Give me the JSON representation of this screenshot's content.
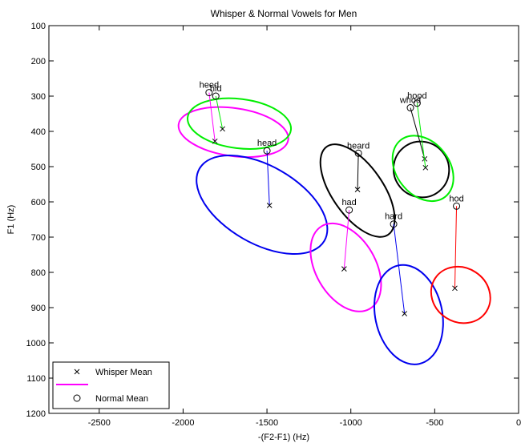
{
  "chart_data": {
    "type": "scatter",
    "title": "Whisper & Normal Vowels for Men",
    "xlabel": "-(F2-F1) (Hz)",
    "ylabel": "F1 (Hz)",
    "xlim": [
      -2800,
      0
    ],
    "ylim": [
      100,
      1200
    ],
    "y_inverted": true,
    "x_ticks": [
      -2500,
      -2000,
      -1500,
      -1000,
      -500,
      0
    ],
    "y_ticks": [
      100,
      200,
      300,
      400,
      500,
      600,
      700,
      800,
      900,
      1000,
      1100,
      1200
    ],
    "grid": false,
    "legend": {
      "placement": "bottom-left",
      "entries": [
        {
          "marker": "x",
          "label": "Whisper Mean"
        },
        {
          "marker": "line",
          "color": "#ff00ff",
          "label": ""
        },
        {
          "marker": "o",
          "label": "Normal Mean"
        }
      ]
    },
    "vowels": [
      {
        "label": "heed",
        "color": "#ff00ff",
        "normal": [
          -1845,
          290
        ],
        "whisper": [
          -1810,
          428
        ],
        "ellipse": {
          "cx": -1700,
          "cy": 402,
          "rx": 330,
          "ry": 68,
          "angle": 8
        }
      },
      {
        "label": "hid",
        "color": "#00ee00",
        "normal": [
          -1805,
          300
        ],
        "whisper": [
          -1765,
          393
        ],
        "ellipse": {
          "cx": -1665,
          "cy": 378,
          "rx": 310,
          "ry": 70,
          "angle": 7
        }
      },
      {
        "label": "head",
        "color": "#0000ee",
        "normal": [
          -1500,
          455
        ],
        "whisper": [
          -1485,
          610
        ],
        "ellipse": {
          "cx": -1530,
          "cy": 608,
          "rx": 430,
          "ry": 110,
          "angle": 30
        }
      },
      {
        "label": "had",
        "color": "#ff00ff",
        "normal": [
          -1010,
          623
        ],
        "whisper": [
          -1040,
          790
        ],
        "ellipse": {
          "cx": -1030,
          "cy": 786,
          "rx": 285,
          "ry": 85,
          "angle": 60
        }
      },
      {
        "label": "heard",
        "color": "#000000",
        "normal": [
          -955,
          462
        ],
        "whisper": [
          -960,
          565
        ],
        "ellipse": {
          "cx": -960,
          "cy": 568,
          "rx": 320,
          "ry": 72,
          "angle": 55
        }
      },
      {
        "label": "hard",
        "color": "#0000ee",
        "normal": [
          -745,
          663
        ],
        "whisper": [
          -680,
          917
        ],
        "ellipse": {
          "cx": -655,
          "cy": 920,
          "rx": 300,
          "ry": 95,
          "angle": 78
        }
      },
      {
        "label": "whod",
        "color": "#000000",
        "normal": [
          -645,
          333
        ],
        "whisper": [
          -560,
          478
        ],
        "ellipse": {
          "cx": -580,
          "cy": 508,
          "rx": 168,
          "ry": 78,
          "angle": 50
        }
      },
      {
        "label": "hood",
        "color": "#00ee00",
        "normal": [
          -605,
          320
        ],
        "whisper": [
          -555,
          503
        ],
        "ellipse": {
          "cx": -570,
          "cy": 505,
          "rx": 215,
          "ry": 75,
          "angle": 52
        }
      },
      {
        "label": "hod",
        "color": "#ff0000",
        "normal": [
          -370,
          612
        ],
        "whisper": [
          -380,
          845
        ],
        "ellipse": {
          "cx": -345,
          "cy": 864,
          "rx": 182,
          "ry": 77,
          "angle": 33
        }
      }
    ]
  }
}
